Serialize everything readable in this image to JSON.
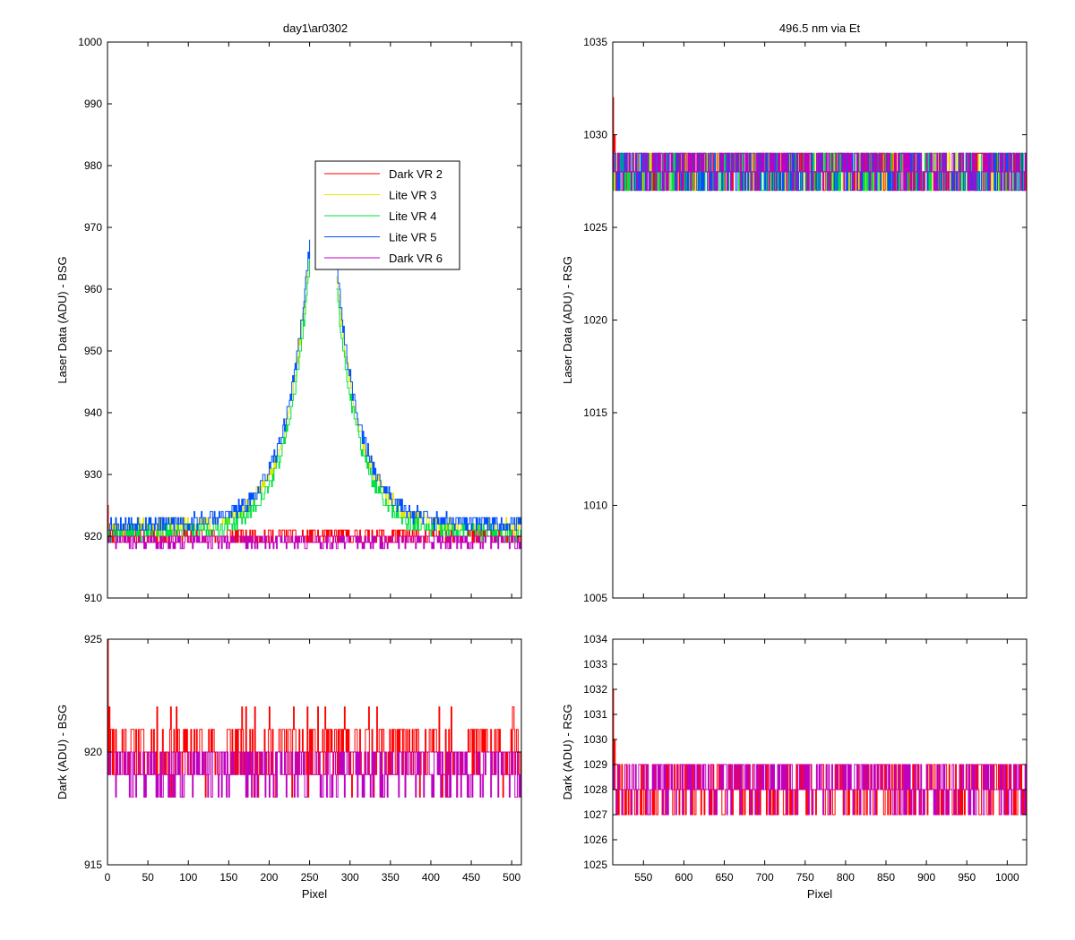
{
  "figure": {
    "left_title": "day1\\ar0302",
    "right_title": "496.5 nm via Et"
  },
  "chart_data": [
    {
      "id": "top-left",
      "type": "line",
      "title": "day1\\ar0302",
      "xlabel": "",
      "ylabel": "Laser Data (ADU) - BSG",
      "xlim": [
        0,
        512
      ],
      "ylim": [
        910,
        1000
      ],
      "yticks": [
        910,
        920,
        930,
        940,
        950,
        960,
        970,
        980,
        990,
        1000
      ],
      "xticks": [
        0,
        50,
        100,
        150,
        200,
        250,
        300,
        350,
        400,
        450,
        500
      ],
      "show_xtick_labels": false,
      "grid": false,
      "legend_position": "center",
      "series": [
        {
          "name": "Dark VR 2",
          "color": "#ff0000",
          "kind": "flat",
          "x_range": [
            0,
            512
          ],
          "level": 920,
          "noise": 1.5,
          "seed": 11,
          "tail": [
            [
              0,
              925
            ],
            [
              2,
              922
            ],
            [
              4,
              921
            ]
          ]
        },
        {
          "name": "Lite VR 3",
          "color": "#e6e600",
          "kind": "peak",
          "x_range": [
            0,
            512
          ],
          "base": 921.5,
          "peak_x": 265,
          "peak_height": 75,
          "width": 30,
          "noise": 1.2,
          "seed": 23,
          "gap": [
            250,
            283
          ]
        },
        {
          "name": "Lite VR 4",
          "color": "#00e040",
          "kind": "peak",
          "x_range": [
            0,
            512
          ],
          "base": 920.5,
          "peak_x": 265,
          "peak_height": 74,
          "width": 29,
          "noise": 1.2,
          "seed": 37,
          "gap": [
            250,
            283
          ]
        },
        {
          "name": "Lite VR 5",
          "color": "#0050ff",
          "kind": "peak",
          "x_range": [
            0,
            512
          ],
          "base": 922,
          "peak_x": 265,
          "peak_height": 76,
          "width": 30,
          "noise": 1.3,
          "seed": 53,
          "gap": [
            250,
            283
          ]
        },
        {
          "name": "Dark VR 6",
          "color": "#c000c0",
          "kind": "flat",
          "x_range": [
            0,
            512
          ],
          "level": 919.3,
          "noise": 1.2,
          "seed": 71
        }
      ]
    },
    {
      "id": "bottom-left",
      "type": "line",
      "title": "",
      "xlabel": "Pixel",
      "ylabel": "Dark (ADU) - BSG",
      "xlim": [
        0,
        512
      ],
      "ylim": [
        915,
        925
      ],
      "yticks": [
        915,
        920,
        925
      ],
      "xticks": [
        0,
        50,
        100,
        150,
        200,
        250,
        300,
        350,
        400,
        450,
        500
      ],
      "show_xtick_labels": true,
      "grid": false,
      "series": [
        {
          "name": "Dark VR 2",
          "color": "#ff0000",
          "kind": "flat",
          "x_range": [
            0,
            512
          ],
          "level": 920,
          "noise": 1.6,
          "seed": 11,
          "tail": [
            [
              0,
              925
            ],
            [
              2,
              922
            ],
            [
              4,
              921
            ]
          ]
        },
        {
          "name": "Dark VR 6",
          "color": "#c000c0",
          "kind": "flat",
          "x_range": [
            0,
            512
          ],
          "level": 919.3,
          "noise": 1.2,
          "seed": 71
        }
      ]
    },
    {
      "id": "top-right",
      "type": "line",
      "title": "496.5 nm via Et",
      "xlabel": "",
      "ylabel": "Laser Data (ADU) - RSG",
      "xlim": [
        512,
        1024
      ],
      "ylim": [
        1005,
        1035
      ],
      "yticks": [
        1005,
        1010,
        1015,
        1020,
        1025,
        1030,
        1035
      ],
      "xticks": [
        550,
        600,
        650,
        700,
        750,
        800,
        850,
        900,
        950,
        1000
      ],
      "show_xtick_labels": false,
      "grid": false,
      "series": [
        {
          "name": "Dark VR 2",
          "color": "#ff0000",
          "kind": "flat",
          "x_range": [
            512,
            1024
          ],
          "level": 1028,
          "noise": 1.2,
          "seed": 101,
          "tail": [
            [
              512,
              1032
            ],
            [
              514,
              1030
            ]
          ]
        },
        {
          "name": "Lite VR 3",
          "color": "#e6e600",
          "kind": "flat",
          "x_range": [
            512,
            1024
          ],
          "level": 1028,
          "noise": 1.2,
          "seed": 113
        },
        {
          "name": "Lite VR 4",
          "color": "#00e040",
          "kind": "flat",
          "x_range": [
            512,
            1024
          ],
          "level": 1028,
          "noise": 1.2,
          "seed": 127
        },
        {
          "name": "Lite VR 5",
          "color": "#0050ff",
          "kind": "flat",
          "x_range": [
            512,
            1024
          ],
          "level": 1028,
          "noise": 1.1,
          "seed": 139
        },
        {
          "name": "Dark VR 6",
          "color": "#c000c0",
          "kind": "flat",
          "x_range": [
            512,
            1024
          ],
          "level": 1028.2,
          "noise": 1.0,
          "seed": 151
        }
      ]
    },
    {
      "id": "bottom-right",
      "type": "line",
      "title": "",
      "xlabel": "Pixel",
      "ylabel": "Dark (ADU) - RSG",
      "xlim": [
        512,
        1024
      ],
      "ylim": [
        1025,
        1034
      ],
      "yticks": [
        1025,
        1026,
        1027,
        1028,
        1029,
        1030,
        1031,
        1032,
        1033,
        1034
      ],
      "xticks": [
        550,
        600,
        650,
        700,
        750,
        800,
        850,
        900,
        950,
        1000
      ],
      "show_xtick_labels": true,
      "grid": false,
      "series": [
        {
          "name": "Dark VR 2",
          "color": "#ff0000",
          "kind": "flat",
          "x_range": [
            512,
            1024
          ],
          "level": 1028,
          "noise": 1.2,
          "seed": 101,
          "tail": [
            [
              512,
              1032
            ],
            [
              514,
              1030
            ]
          ]
        },
        {
          "name": "Dark VR 6",
          "color": "#c000c0",
          "kind": "flat",
          "x_range": [
            512,
            1024
          ],
          "level": 1028.2,
          "noise": 1.0,
          "seed": 151
        }
      ]
    }
  ]
}
